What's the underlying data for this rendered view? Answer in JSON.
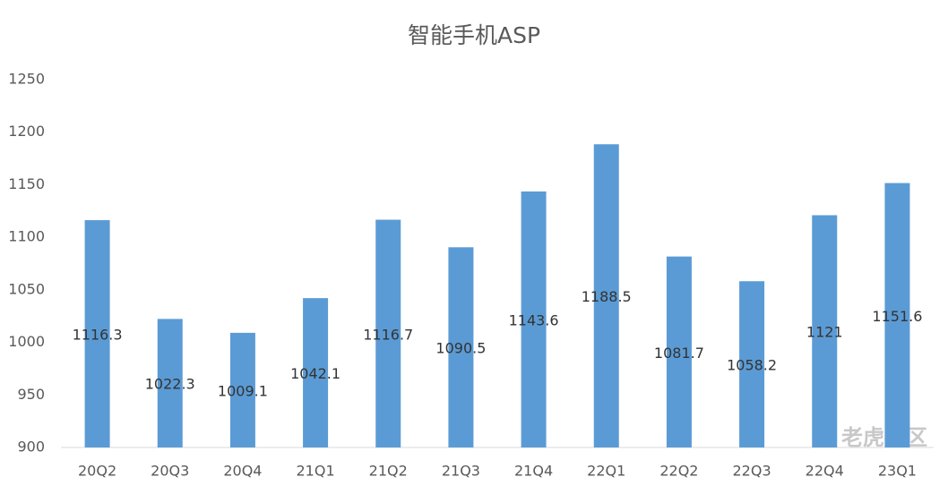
{
  "chart_data": {
    "type": "bar",
    "title": "智能手机ASP",
    "categories": [
      "20Q2",
      "20Q3",
      "20Q4",
      "21Q1",
      "21Q2",
      "21Q3",
      "21Q4",
      "22Q1",
      "22Q2",
      "22Q3",
      "22Q4",
      "23Q1"
    ],
    "values": [
      1116.3,
      1022.3,
      1009.1,
      1042.1,
      1116.7,
      1090.5,
      1143.6,
      1188.5,
      1081.7,
      1058.2,
      1121,
      1151.6
    ],
    "color": "#5b9bd5",
    "ylim": [
      900,
      1250
    ],
    "yticks": [
      900,
      950,
      1000,
      1050,
      1100,
      1150,
      1200,
      1250
    ],
    "grid": false,
    "watermark": "老虎社区"
  }
}
